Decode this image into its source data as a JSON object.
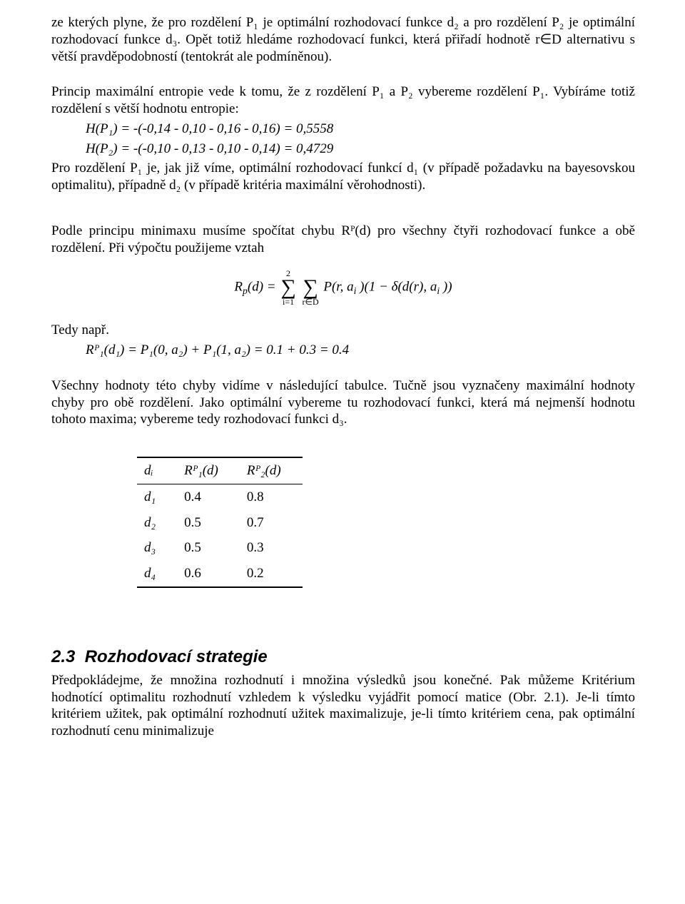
{
  "para1": "ze kterých plyne, že pro rozdělení P₁ je optimální rozhodovací funkce d₂ a pro rozdělení P₂ je optimální rozhodovací funkce d₃. Opět totiž hledáme rozhodovací funkci, která přiřadí hodnotě r∈D alternativu s větší pravděpodobností (tentokrát ale podmíněnou).",
  "para2": "Princip maximální entropie vede k tomu, že z  rozdělení P₁ a P₂ vybereme rozdělení P₁. Vybíráme totiž rozdělení s větší hodnotu entropie:",
  "hp1": "H(P₁) = -(-0,14 - 0,10 - 0,16 - 0,16) = 0,5558",
  "hp2": "H(P₂) = -(-0,10 - 0,13 - 0,10 - 0,14) = 0,4729",
  "para3": "Pro rozdělení P₁ je, jak již víme, optimální rozhodovací funkcí d₁ (v případě požadavku na bayesovskou optimalitu), případně d₂ (v případě kritéria maximální věrohodnosti).",
  "para4": "Podle principu minimaxu musíme spočítat chybu Rᴾ(d) pro všechny čtyři rozhodovací funkce a obě rozdělení. Při výpočtu použijeme vztah",
  "formula": {
    "lhs": "R",
    "lhs_sub": "p",
    "lhs_arg": "(d) = ",
    "sum1_top": "2",
    "sum1_bot": "i=1",
    "sum2_bot": "r∈D",
    "rhs": " P(r, a",
    "rhs_i1": "i",
    "rhs_mid": " )(1 − δ(d(r), a",
    "rhs_i2": "i",
    "rhs_end": " ))"
  },
  "tedy_label": "Tedy např.",
  "tedy_eq": "Rᴾ₁(d₁) = P₁(0, a₂) + P₁(1, a₂) = 0.1 + 0.3 = 0.4",
  "para5": "Všechny hodnoty této chyby vidíme v následující tabulce. Tučně jsou vyznačeny maximální hodnoty chyby pro obě rozdělení. Jako optimální vybereme tu rozhodovací funkci, která má nejmenší hodnotu tohoto maxima; vybereme tedy rozhodovací funkci d₃.",
  "table": {
    "head": {
      "c0": "dᵢ",
      "c1": "Rᴾ₁(d)",
      "c2": "Rᴾ₂(d)"
    },
    "rows": [
      {
        "c0": "d₁",
        "c1": "0.4",
        "c2": "0.8",
        "bold": 2
      },
      {
        "c0": "d₂",
        "c1": "0.5",
        "c2": "0.7",
        "bold": 2
      },
      {
        "c0": "d₃",
        "c1": "0.5",
        "c2": "0.3",
        "bold": 1
      },
      {
        "c0": "d₄",
        "c1": "0.6",
        "c2": "0.2",
        "bold": 1
      }
    ]
  },
  "section_no": "2.3",
  "section_title": "Rozhodovací strategie",
  "para6": "Předpokládejme, že množina rozhodnutí i množina výsledků jsou konečné. Pak můžeme Kritérium hodnotící optimalitu rozhodnutí vzhledem k výsledku vyjádřit pomocí matice (Obr.  2.1). Je-li tímto kritériem užitek, pak optimální rozhodnutí užitek maximalizuje, je-li tímto kritériem cena, pak optimální rozhodnutí cenu minimalizuje"
}
